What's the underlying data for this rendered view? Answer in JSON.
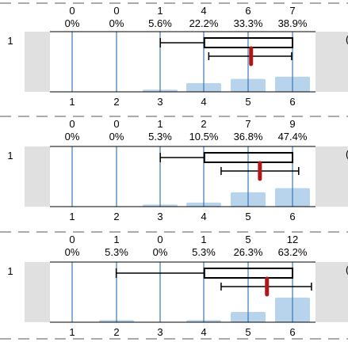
{
  "chart_data": [
    {
      "type": "bar",
      "row_label": "1",
      "categories": [
        "1",
        "2",
        "3",
        "4",
        "5",
        "6"
      ],
      "counts": [
        0,
        0,
        1,
        4,
        6,
        7
      ],
      "count_labels": [
        "0",
        "0",
        "1",
        "4",
        "6",
        "7"
      ],
      "percent_labels": [
        "0%",
        "0%",
        "5.6%",
        "22.2%",
        "33.3%",
        "38.9%"
      ],
      "box": {
        "whisker_low": 3,
        "q1": 4,
        "q3": 6,
        "whisker_high": 6
      },
      "mean_ci": {
        "mean": 5.06,
        "low": 4.1,
        "high": 5.98
      },
      "side_mark": "("
    },
    {
      "type": "bar",
      "row_label": "1",
      "categories": [
        "1",
        "2",
        "3",
        "4",
        "5",
        "6"
      ],
      "counts": [
        0,
        0,
        1,
        2,
        7,
        9
      ],
      "count_labels": [
        "0",
        "0",
        "1",
        "2",
        "7",
        "9"
      ],
      "percent_labels": [
        "0%",
        "0%",
        "5.3%",
        "10.5%",
        "36.8%",
        "47.4%"
      ],
      "box": {
        "whisker_low": 3,
        "q1": 4,
        "q3": 6,
        "whisker_high": 6
      },
      "mean_ci": {
        "mean": 5.26,
        "low": 4.38,
        "high": 6.14
      },
      "side_mark": "("
    },
    {
      "type": "bar",
      "row_label": "1",
      "categories": [
        "1",
        "2",
        "3",
        "4",
        "5",
        "6"
      ],
      "counts": [
        0,
        1,
        0,
        1,
        5,
        12
      ],
      "count_labels": [
        "0",
        "1",
        "0",
        "1",
        "5",
        "12"
      ],
      "percent_labels": [
        "0%",
        "5.3%",
        "0%",
        "5.3%",
        "26.3%",
        "63.2%"
      ],
      "box": {
        "whisker_low": 2,
        "q1": 4,
        "q3": 6,
        "whisker_high": 6
      },
      "mean_ci": {
        "mean": 5.42,
        "low": 4.38,
        "high": 6.43
      },
      "side_mark": "("
    }
  ],
  "colors": {
    "bar": "#b7d4ec",
    "gridline": "#3a78b8",
    "mean": "#b01818",
    "side_panel": "#e0e0e0",
    "dashed_rule": "#555555"
  }
}
